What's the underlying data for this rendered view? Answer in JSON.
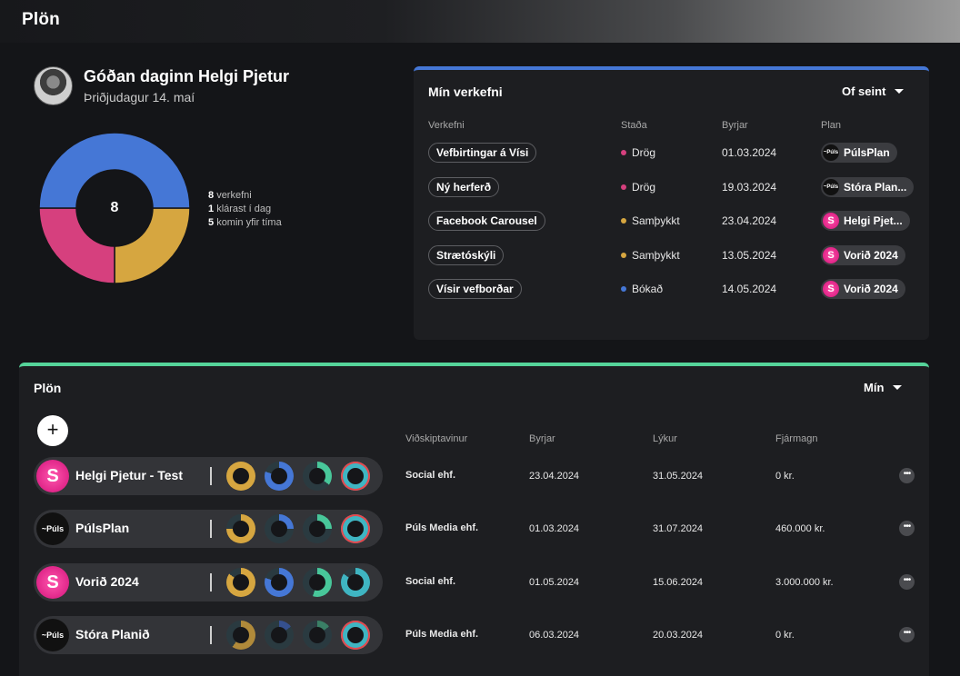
{
  "app": {
    "title": "Plön"
  },
  "greeting": {
    "title": "Góðan daginn Helgi Pjetur",
    "date": "Þriðjudagur 14. maí"
  },
  "summary": {
    "total": "8",
    "legend": [
      {
        "num": "8",
        "text": "verkefni"
      },
      {
        "num": "1",
        "text": "klárast í dag"
      },
      {
        "num": "5",
        "text": "komin yfir tíma"
      }
    ]
  },
  "chart_data": {
    "type": "pie",
    "center_label": "8",
    "slices": [
      {
        "value": 0.5,
        "color": "#4577d6"
      },
      {
        "value": 0.25,
        "color": "#d6a640"
      },
      {
        "value": 0.25,
        "color": "#d6407e"
      }
    ]
  },
  "tasks": {
    "title": "Mín verkefni",
    "sort": "Of seint",
    "headers": {
      "task": "Verkefni",
      "status": "Staða",
      "start": "Byrjar",
      "plan": "Plan"
    },
    "rows": [
      {
        "name": "Vefbirtingar á Vísi",
        "status": "Drög",
        "status_color": "#d6407e",
        "start": "01.03.2024",
        "plan": "PúlsPlan",
        "logo": "puls"
      },
      {
        "name": "Ný herferð",
        "status": "Drög",
        "status_color": "#d6407e",
        "start": "19.03.2024",
        "plan": "Stóra Plan...",
        "logo": "puls"
      },
      {
        "name": "Facebook Carousel",
        "status": "Samþykkt",
        "status_color": "#d6a640",
        "start": "23.04.2024",
        "plan": "Helgi Pjet...",
        "logo": "s"
      },
      {
        "name": "Strætóskýli",
        "status": "Samþykkt",
        "status_color": "#d6a640",
        "start": "13.05.2024",
        "plan": "Vorið 2024",
        "logo": "s"
      },
      {
        "name": "Vísir vefborðar",
        "status": "Bókað",
        "status_color": "#4577d6",
        "start": "14.05.2024",
        "plan": "Vorið 2024",
        "logo": "s"
      }
    ]
  },
  "plans": {
    "title": "Plön",
    "filter": "Mín",
    "add_icon": "plus-icon",
    "headers": {
      "client": "Viðskiptavinur",
      "start": "Byrjar",
      "end": "Lýkur",
      "budget": "Fjármagn"
    },
    "rows": [
      {
        "name": "Helgi Pjetur - Test",
        "logo": "s",
        "client": "Social ehf.",
        "start": "23.04.2024",
        "end": "31.05.2024",
        "budget": "0 kr.",
        "rings": [
          {
            "color": "#d6a640",
            "fill": 1.0
          },
          {
            "color": "#4577d6",
            "fill": 0.8
          },
          {
            "color": "#48c79a",
            "fill": 0.35
          },
          {
            "color": "#3fb5c2",
            "fill": 1.0,
            "outer": "#e5484d"
          }
        ]
      },
      {
        "name": "PúlsPlan",
        "logo": "puls",
        "client": "Púls Media ehf.",
        "start": "01.03.2024",
        "end": "31.07.2024",
        "budget": "460.000 kr.",
        "rings": [
          {
            "color": "#d6a640",
            "fill": 0.75
          },
          {
            "color": "#4577d6",
            "fill": 0.25
          },
          {
            "color": "#48c79a",
            "fill": 0.25
          },
          {
            "color": "#3fb5c2",
            "fill": 1.0,
            "outer": "#e5484d"
          }
        ]
      },
      {
        "name": "Vorið 2024",
        "logo": "s",
        "client": "Social ehf.",
        "start": "01.05.2024",
        "end": "15.06.2024",
        "budget": "3.000.000 kr.",
        "rings": [
          {
            "color": "#d6a640",
            "fill": 0.85
          },
          {
            "color": "#4577d6",
            "fill": 0.8
          },
          {
            "color": "#48c79a",
            "fill": 0.55
          },
          {
            "color": "#3fb5c2",
            "fill": 0.85
          }
        ]
      },
      {
        "name": "Stóra Planið",
        "logo": "puls",
        "client": "Púls Media ehf.",
        "start": "06.03.2024",
        "end": "20.03.2024",
        "budget": "0 kr.",
        "rings": [
          {
            "color": "#b08a3a",
            "fill": 0.6
          },
          {
            "color": "#35508f",
            "fill": 0.15
          },
          {
            "color": "#3a7f66",
            "fill": 0.15
          },
          {
            "color": "#3fb5c2",
            "fill": 1.0,
            "outer": "#e5484d"
          }
        ]
      }
    ]
  }
}
